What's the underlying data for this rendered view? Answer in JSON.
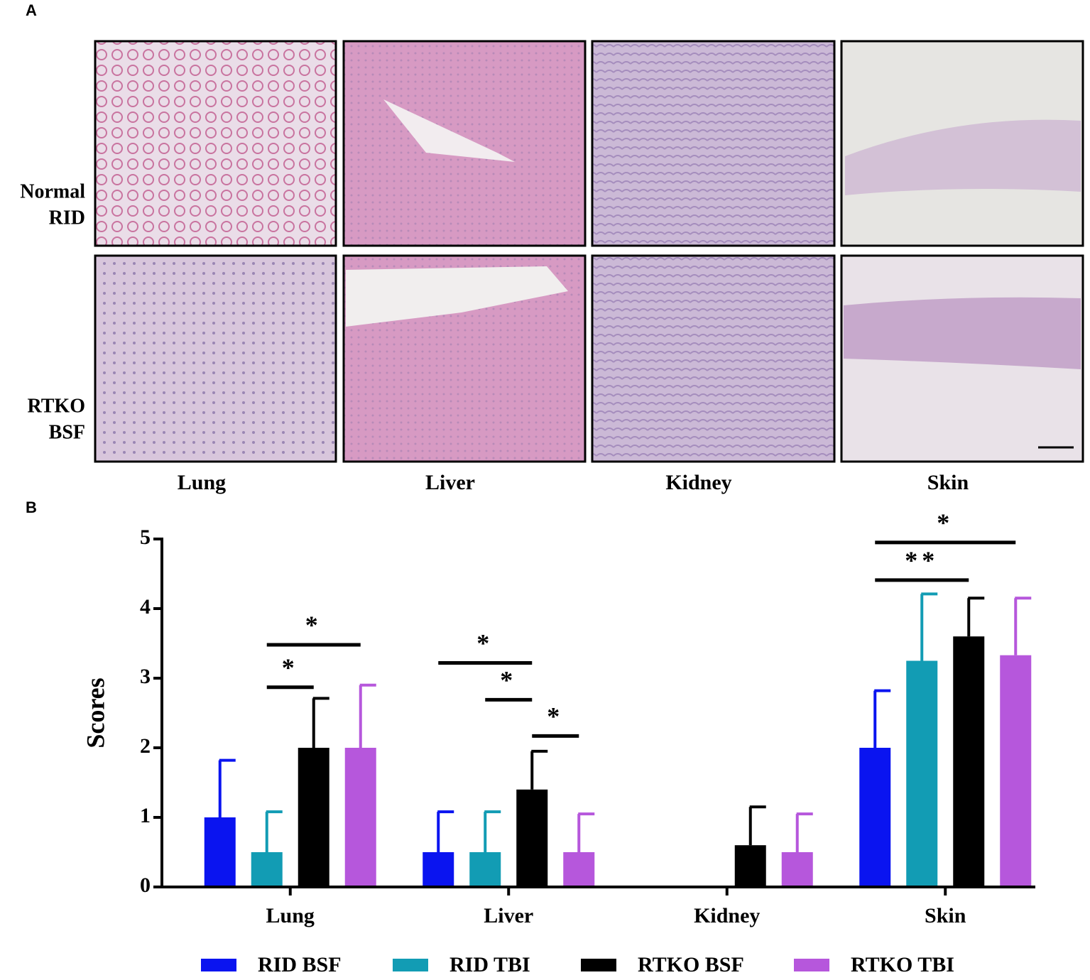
{
  "panel_a": {
    "label": "A",
    "rows": [
      [
        "Normal",
        "RID"
      ],
      [
        "RTKO",
        "BSF"
      ]
    ],
    "columns": [
      "Lung",
      "Liver",
      "Kidney",
      "Skin"
    ]
  },
  "chart_data": {
    "type": "bar",
    "panel_label": "B",
    "ylabel": "Scores",
    "categories": [
      "Lung",
      "Liver",
      "Kidney",
      "Skin"
    ],
    "series": [
      {
        "name": "RID BSF",
        "color": "#0a14f0",
        "values": [
          1,
          0.5,
          0,
          2
        ],
        "errors": [
          0.82,
          0.58,
          0,
          0.82
        ]
      },
      {
        "name": "RID TBI",
        "color": "#129cb4",
        "values": [
          0.5,
          0.5,
          0,
          3.25
        ],
        "errors": [
          0.58,
          0.58,
          0,
          0.96
        ]
      },
      {
        "name": "RTKO BSF",
        "color": "#000000",
        "values": [
          2,
          1.4,
          0.6,
          3.6
        ],
        "errors": [
          0.71,
          0.55,
          0.55,
          0.55
        ]
      },
      {
        "name": "RTKO TBI",
        "color": "#b657dc",
        "values": [
          2,
          0.5,
          0.5,
          3.33
        ],
        "errors": [
          0.9,
          0.55,
          0.55,
          0.82
        ]
      }
    ],
    "ylim": [
      0,
      5
    ],
    "yticks": [
      0,
      1,
      2,
      3,
      4,
      5
    ],
    "annotations": [
      {
        "text": "*",
        "category": 0,
        "series": [
          1,
          2
        ],
        "y": 2.87
      },
      {
        "text": "*",
        "category": 0,
        "series": [
          1,
          3
        ],
        "y": 3.48
      },
      {
        "text": "*",
        "category": 1,
        "series": [
          0,
          2
        ],
        "y": 3.22
      },
      {
        "text": "*",
        "category": 1,
        "series": [
          1,
          2
        ],
        "y": 2.69
      },
      {
        "text": "*",
        "category": 1,
        "series": [
          2,
          3
        ],
        "y": 2.17
      },
      {
        "text": "**",
        "category": 3,
        "series": [
          0,
          2
        ],
        "y": 4.41
      },
      {
        "text": "*",
        "category": 3,
        "series": [
          0,
          3
        ],
        "y": 4.95
      }
    ]
  }
}
